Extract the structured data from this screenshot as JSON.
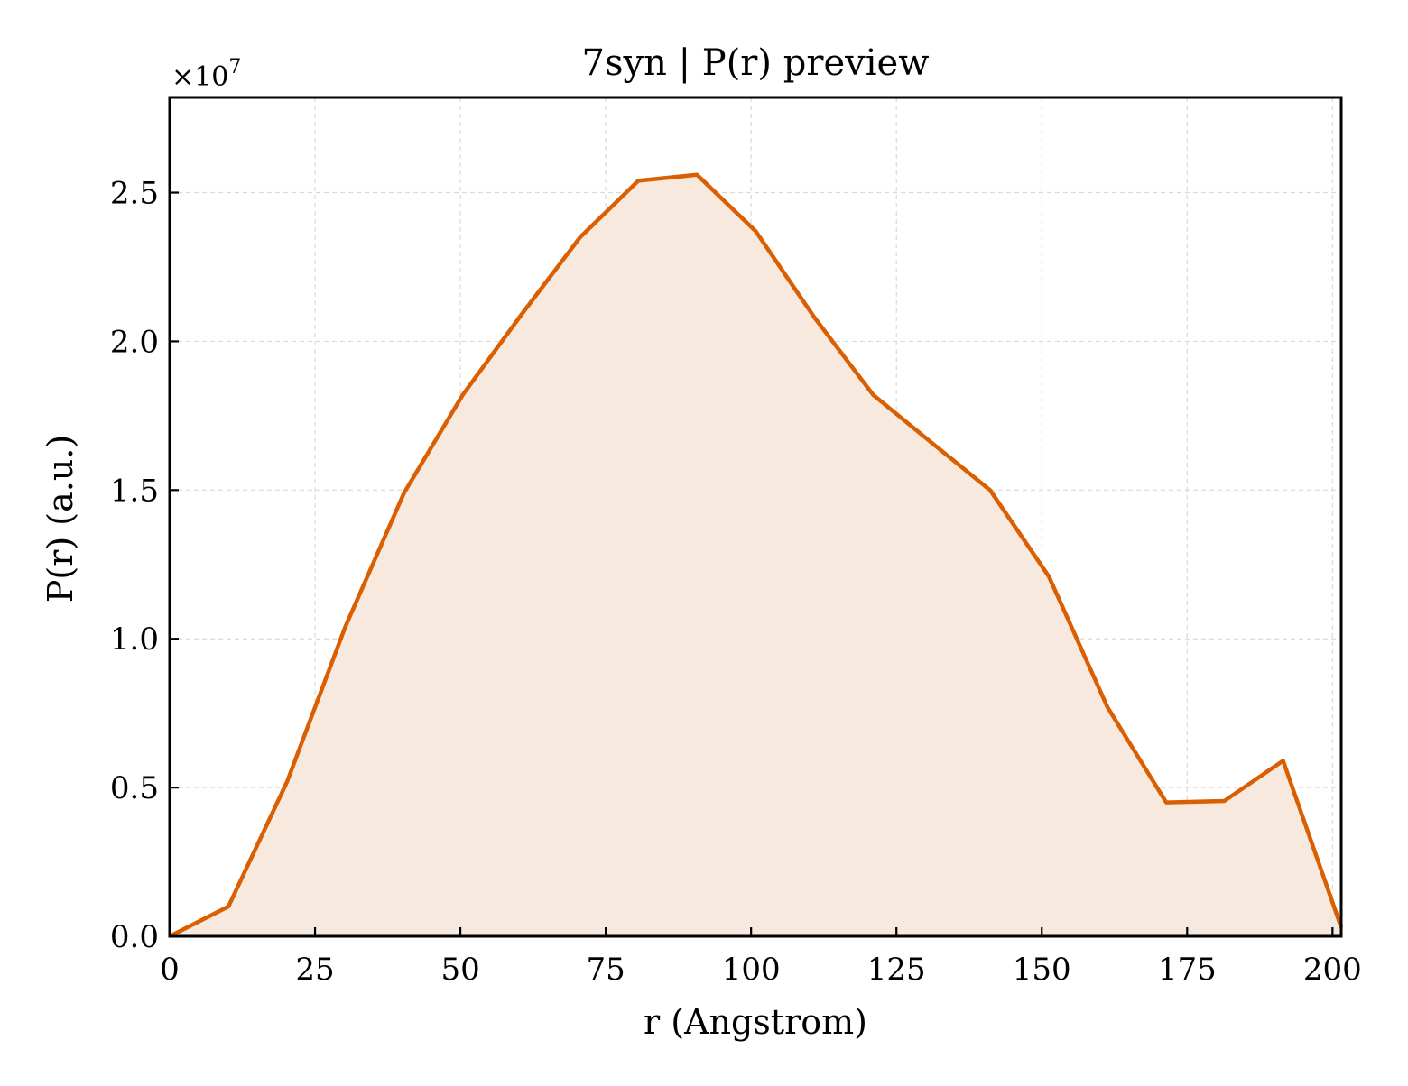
{
  "chart_data": {
    "type": "area",
    "title": "7syn | P(r) preview",
    "xlabel": "r (Angstrom)",
    "ylabel": "P(r) (a.u.)",
    "y_offset_label_base": "×10",
    "y_offset_label_exp": "7",
    "y_scale": 10000000,
    "xlim": [
      0,
      201.5
    ],
    "ylim": [
      0,
      2.82
    ],
    "x_ticks": [
      0,
      25,
      50,
      75,
      100,
      125,
      150,
      175,
      200
    ],
    "x_tick_labels": [
      "0",
      "25",
      "50",
      "75",
      "100",
      "125",
      "150",
      "175",
      "200"
    ],
    "y_ticks": [
      0,
      0.5,
      1.0,
      1.5,
      2.0,
      2.5
    ],
    "y_tick_labels": [
      "0.0",
      "0.5",
      "1.0",
      "1.5",
      "2.0",
      "2.5"
    ],
    "grid": true,
    "series": [
      {
        "x": [
          0,
          10.1,
          20.2,
          30.2,
          40.3,
          50.4,
          60.5,
          70.6,
          80.6,
          90.7,
          100.8,
          110.9,
          121.0,
          131.0,
          141.1,
          151.2,
          161.3,
          171.4,
          181.4,
          191.5,
          201.5
        ],
        "values": [
          0.0,
          0.1,
          0.52,
          1.04,
          1.49,
          1.82,
          2.09,
          2.35,
          2.54,
          2.56,
          2.37,
          2.08,
          1.82,
          1.66,
          1.5,
          1.21,
          0.77,
          0.45,
          0.455,
          0.59,
          0.03
        ]
      }
    ],
    "colors": {
      "line": "#d95f02",
      "fill": "#f8e9df",
      "grid": "#d9d9d9",
      "frame": "#000000"
    }
  }
}
